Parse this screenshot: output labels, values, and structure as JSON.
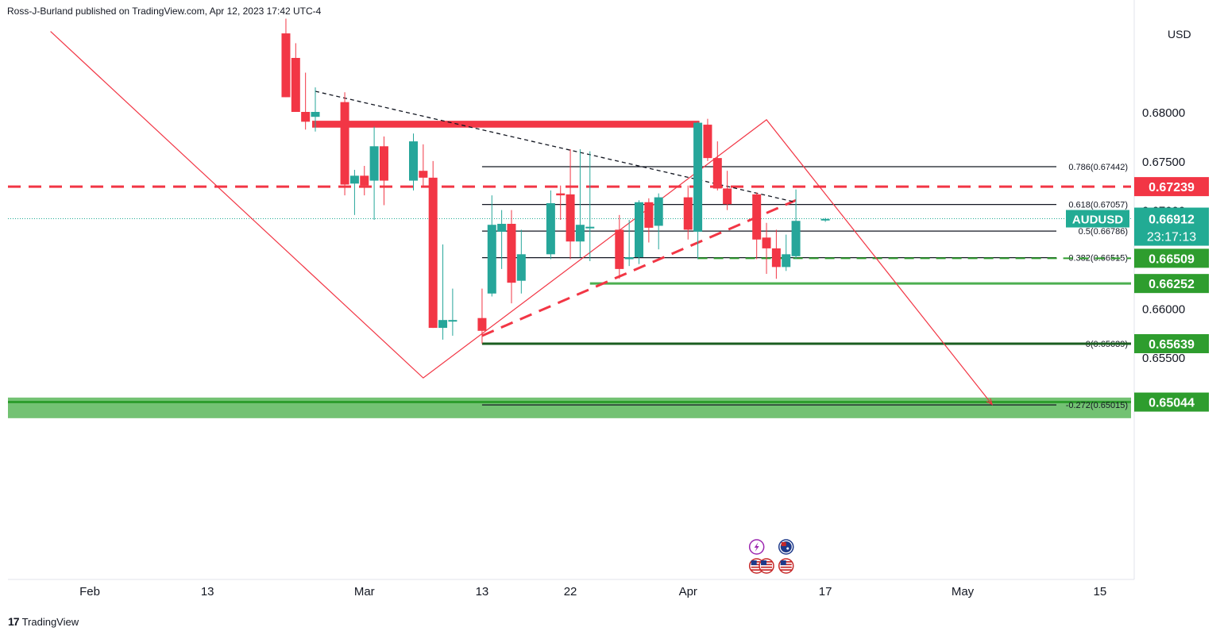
{
  "header": {
    "publisher_line": "Ross-J-Burland published on TradingView.com, Apr 12, 2023 17:42 UTC-4"
  },
  "footer": {
    "logo_text": "TradingView",
    "logo_icon": "tradingview-logo-icon"
  },
  "colors": {
    "up": "#26a69a",
    "down": "#f23645",
    "red_line": "#f23645",
    "green_level": "#4caf50",
    "zone_fill": "#6cbf6c",
    "current_price": "#22ab94"
  },
  "chart_data": {
    "type": "candlestick",
    "symbol": "AUDUSD",
    "currency": "USD",
    "timeframe": "1D",
    "ylim": [
      0.6475,
      0.6835
    ],
    "y_ticks": [
      "0.68000",
      "0.67500",
      "0.67000",
      "0.66000",
      "0.65500"
    ],
    "x_ticks": [
      {
        "label": "Feb",
        "date": "2023-02-01"
      },
      {
        "label": "13",
        "date": "2023-02-13"
      },
      {
        "label": "Mar",
        "date": "2023-03-01"
      },
      {
        "label": "13",
        "date": "2023-03-13"
      },
      {
        "label": "22",
        "date": "2023-03-22"
      },
      {
        "label": "Apr",
        "date": "2023-04-03"
      },
      {
        "label": "17",
        "date": "2023-04-17"
      },
      {
        "label": "May",
        "date": "2023-05-01"
      },
      {
        "label": "15",
        "date": "2023-05-15"
      }
    ],
    "candles": [
      {
        "date": "2023-02-21",
        "o": 0.688,
        "h": 0.6895,
        "l": 0.6815,
        "c": 0.6815
      },
      {
        "date": "2023-02-22",
        "o": 0.6855,
        "h": 0.687,
        "l": 0.68,
        "c": 0.68
      },
      {
        "date": "2023-02-23",
        "o": 0.68,
        "h": 0.684,
        "l": 0.6782,
        "c": 0.679
      },
      {
        "date": "2023-02-24",
        "o": 0.6795,
        "h": 0.6825,
        "l": 0.678,
        "c": 0.68
      },
      {
        "date": "2023-02-27",
        "o": 0.681,
        "h": 0.682,
        "l": 0.6715,
        "c": 0.6726
      },
      {
        "date": "2023-02-28",
        "o": 0.6727,
        "h": 0.6741,
        "l": 0.6695,
        "c": 0.6735
      },
      {
        "date": "2023-03-01",
        "o": 0.6735,
        "h": 0.6745,
        "l": 0.6715,
        "c": 0.6725
      },
      {
        "date": "2023-03-02",
        "o": 0.673,
        "h": 0.6785,
        "l": 0.669,
        "c": 0.6765
      },
      {
        "date": "2023-03-03",
        "o": 0.6765,
        "h": 0.6775,
        "l": 0.6705,
        "c": 0.673
      },
      {
        "date": "2023-03-06",
        "o": 0.673,
        "h": 0.6778,
        "l": 0.672,
        "c": 0.677
      },
      {
        "date": "2023-03-07",
        "o": 0.674,
        "h": 0.6767,
        "l": 0.6725,
        "c": 0.6733
      },
      {
        "date": "2023-03-08",
        "o": 0.6733,
        "h": 0.675,
        "l": 0.658,
        "c": 0.658
      },
      {
        "date": "2023-03-09",
        "o": 0.658,
        "h": 0.6665,
        "l": 0.6568,
        "c": 0.6588
      },
      {
        "date": "2023-03-10",
        "o": 0.6587,
        "h": 0.662,
        "l": 0.6572,
        "c": 0.6588
      },
      {
        "date": "2023-03-13",
        "o": 0.659,
        "h": 0.662,
        "l": 0.6564,
        "c": 0.6577
      },
      {
        "date": "2023-03-14",
        "o": 0.6615,
        "h": 0.6715,
        "l": 0.6612,
        "c": 0.6685
      },
      {
        "date": "2023-03-15",
        "o": 0.6678,
        "h": 0.67,
        "l": 0.664,
        "c": 0.6686
      },
      {
        "date": "2023-03-16",
        "o": 0.6686,
        "h": 0.67,
        "l": 0.6605,
        "c": 0.6626
      },
      {
        "date": "2023-03-17",
        "o": 0.6628,
        "h": 0.668,
        "l": 0.6615,
        "c": 0.6655
      },
      {
        "date": "2023-03-20",
        "o": 0.6655,
        "h": 0.672,
        "l": 0.665,
        "c": 0.6707
      },
      {
        "date": "2023-03-21",
        "o": 0.6717,
        "h": 0.6725,
        "l": 0.669,
        "c": 0.6715
      },
      {
        "date": "2023-03-22",
        "o": 0.6716,
        "h": 0.6762,
        "l": 0.665,
        "c": 0.6668
      },
      {
        "date": "2023-03-23",
        "o": 0.6668,
        "h": 0.6762,
        "l": 0.6652,
        "c": 0.6685
      },
      {
        "date": "2023-03-24",
        "o": 0.6682,
        "h": 0.676,
        "l": 0.6648,
        "c": 0.6683
      },
      {
        "date": "2023-03-27",
        "o": 0.668,
        "h": 0.6695,
        "l": 0.663,
        "c": 0.664
      },
      {
        "date": "2023-03-28",
        "o": 0.665,
        "h": 0.669,
        "l": 0.6643,
        "c": 0.6652
      },
      {
        "date": "2023-03-29",
        "o": 0.6652,
        "h": 0.671,
        "l": 0.6645,
        "c": 0.6708
      },
      {
        "date": "2023-03-30",
        "o": 0.6708,
        "h": 0.6712,
        "l": 0.6667,
        "c": 0.6682
      },
      {
        "date": "2023-03-31",
        "o": 0.6684,
        "h": 0.6717,
        "l": 0.666,
        "c": 0.6713
      },
      {
        "date": "2023-04-03",
        "o": 0.6713,
        "h": 0.6725,
        "l": 0.667,
        "c": 0.668
      },
      {
        "date": "2023-04-04",
        "o": 0.6678,
        "h": 0.679,
        "l": 0.665,
        "c": 0.6789
      },
      {
        "date": "2023-04-05",
        "o": 0.6787,
        "h": 0.6793,
        "l": 0.675,
        "c": 0.6753
      },
      {
        "date": "2023-04-06",
        "o": 0.6753,
        "h": 0.677,
        "l": 0.672,
        "c": 0.6722
      },
      {
        "date": "2023-04-07",
        "o": 0.6722,
        "h": 0.674,
        "l": 0.67,
        "c": 0.6706
      },
      {
        "date": "2023-04-10",
        "o": 0.6716,
        "h": 0.6718,
        "l": 0.665,
        "c": 0.667
      },
      {
        "date": "2023-04-11",
        "o": 0.6672,
        "h": 0.6687,
        "l": 0.6635,
        "c": 0.6661
      },
      {
        "date": "2023-04-12",
        "o": 0.6661,
        "h": 0.668,
        "l": 0.663,
        "c": 0.6642
      },
      {
        "date": "2023-04-13",
        "o": 0.6642,
        "h": 0.6675,
        "l": 0.6638,
        "c": 0.6655
      },
      {
        "date": "2023-04-14",
        "o": 0.6653,
        "h": 0.6721,
        "l": 0.665,
        "c": 0.6689
      },
      {
        "date": "2023-04-17",
        "o": 0.669,
        "h": 0.6692,
        "l": 0.6688,
        "c": 0.6691
      }
    ],
    "price_labels": [
      {
        "value": 0.67239,
        "text": "0.67239",
        "color": "#f23645"
      },
      {
        "value": 0.66509,
        "text": "0.66509",
        "color": "#2e9d2e"
      },
      {
        "value": 0.66252,
        "text": "0.66252",
        "color": "#2e9d2e"
      },
      {
        "value": 0.65639,
        "text": "0.65639",
        "color": "#2e9d2e"
      },
      {
        "value": 0.65044,
        "text": "0.65044",
        "color": "#2e9d2e"
      }
    ],
    "current_price": {
      "symbol": "AUDUSD",
      "value": 0.66912,
      "text": "0.66912",
      "countdown": "23:17:13"
    },
    "fib_levels": [
      {
        "label": "0.786(0.67442)",
        "value": 0.67442
      },
      {
        "label": "0.618(0.67057)",
        "value": 0.67057
      },
      {
        "label": "0.5(0.66786)",
        "value": 0.66786
      },
      {
        "label": "0.382(0.66515)",
        "value": 0.66515
      },
      {
        "label": "0(0.65639)",
        "value": 0.65639
      },
      {
        "label": "-0.272(0.65015)",
        "value": 0.65015
      }
    ],
    "fib_start_date": "2023-03-13",
    "resistance_zone": {
      "from": 0.6784,
      "to": 0.6791,
      "start_date": "2023-02-24",
      "end_date": "2023-04-04"
    },
    "support_zone": {
      "from": 0.6488,
      "to": 0.6509
    },
    "support_zone_line": 0.65044,
    "horizontal_red_dashed": 0.67239,
    "green_solid_level": {
      "value": 0.66252,
      "start_date": "2023-03-24"
    },
    "green_dashed_level": {
      "value": 0.66509,
      "start_date": "2023-04-04"
    },
    "black_solid_level": {
      "value": 0.65639,
      "start_date": "2023-03-13"
    },
    "red_dashed_trends": [
      {
        "from": {
          "date": "2023-01-16",
          "price": 0.68
        },
        "to": {
          "date": "2023-01-22",
          "price": 0.683
        }
      },
      {
        "from": {
          "date": "2023-03-13",
          "price": 0.6572
        },
        "to": {
          "date": "2023-04-14",
          "price": 0.671
        }
      }
    ],
    "black_dashed_trend": {
      "from": {
        "date": "2023-02-24",
        "price": 0.6821
      },
      "to": {
        "date": "2023-04-14",
        "price": 0.6708
      }
    },
    "projection_path": [
      {
        "date": "2023-01-28",
        "price": 0.6882
      },
      {
        "date": "2023-03-07",
        "price": 0.6529
      },
      {
        "date": "2023-04-11",
        "price": 0.6792
      },
      {
        "date": "2023-05-04",
        "price": 0.6502
      }
    ],
    "event_icons": [
      {
        "date": "2023-04-10",
        "row": 1,
        "icon": "lightning-icon",
        "color": "#9c27b0"
      },
      {
        "date": "2023-04-13",
        "row": 1,
        "icon": "australia-flag-icon",
        "color": "#1e3a8a"
      },
      {
        "date": "2023-04-10",
        "row": 2,
        "icon": "us-flag-icon",
        "color": "#c62828"
      },
      {
        "date": "2023-04-11",
        "row": 2,
        "icon": "us-flag-icon",
        "color": "#c62828"
      },
      {
        "date": "2023-04-13",
        "row": 2,
        "icon": "us-flag-icon",
        "color": "#c62828"
      }
    ]
  }
}
